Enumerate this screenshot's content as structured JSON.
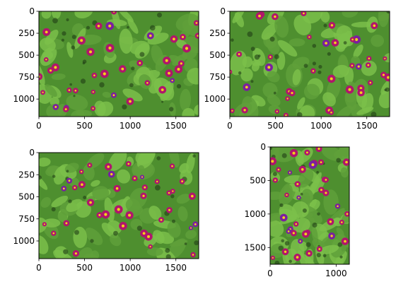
{
  "panels": [
    {
      "name": "panel-top-left",
      "image_size": [
        1750,
        1200
      ],
      "xticks": [
        0,
        500,
        1000,
        1500
      ],
      "yticks": [
        0,
        250,
        500,
        750,
        1000
      ],
      "xtick_labels": [
        "0",
        "500",
        "1000",
        "1500"
      ],
      "ytick_labels": [
        "0",
        "250",
        "500",
        "750",
        "1000"
      ],
      "colors": {
        "leaf_base": "#4e8f2f",
        "leaf_light": "#7bbf4a",
        "flower": "#b0156c",
        "flower_center": "#f4d21a"
      }
    },
    {
      "name": "panel-top-right",
      "image_size": [
        1750,
        1200
      ],
      "xticks": [
        0,
        500,
        1000,
        1500
      ],
      "yticks": [
        0,
        250,
        500,
        750,
        1000
      ],
      "xtick_labels": [
        "0",
        "500",
        "1000",
        "1500"
      ],
      "ytick_labels": [
        "0",
        "250",
        "500",
        "750",
        "1000"
      ],
      "colors": {
        "leaf_base": "#4e8f2f",
        "leaf_light": "#7bbf4a",
        "flower": "#b0156c",
        "flower_center": "#f4d21a"
      }
    },
    {
      "name": "panel-bottom-left",
      "image_size": [
        1750,
        1200
      ],
      "xticks": [
        0,
        500,
        1000,
        1500
      ],
      "yticks": [
        0,
        250,
        500,
        750,
        1000
      ],
      "xtick_labels": [
        "0",
        "500",
        "1000",
        "1500"
      ],
      "ytick_labels": [
        "0",
        "250",
        "500",
        "750",
        "1000"
      ],
      "colors": {
        "leaf_base": "#4e8f2f",
        "leaf_light": "#7bbf4a",
        "flower": "#b0156c",
        "flower_center": "#f4d21a"
      }
    },
    {
      "name": "panel-bottom-right",
      "image_size": [
        1200,
        1750
      ],
      "xticks": [
        0,
        1000
      ],
      "yticks": [
        0,
        500,
        1000,
        1500
      ],
      "xtick_labels": [
        "0",
        "1000"
      ],
      "ytick_labels": [
        "0",
        "500",
        "1000",
        "1500"
      ],
      "colors": {
        "leaf_base": "#4e8f2f",
        "leaf_light": "#7bbf4a",
        "flower": "#b0156c",
        "flower_center": "#f4d21a"
      }
    }
  ]
}
